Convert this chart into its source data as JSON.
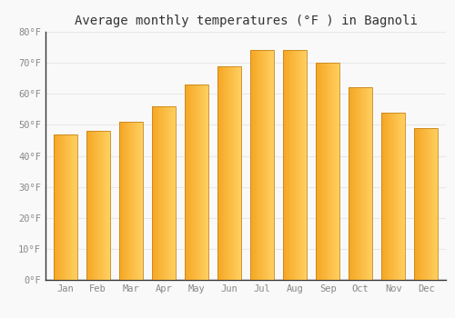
{
  "title": "Average monthly temperatures (°F ) in Bagnoli",
  "months": [
    "Jan",
    "Feb",
    "Mar",
    "Apr",
    "May",
    "Jun",
    "Jul",
    "Aug",
    "Sep",
    "Oct",
    "Nov",
    "Dec"
  ],
  "values": [
    47,
    48,
    51,
    56,
    63,
    69,
    74,
    74,
    70,
    62,
    54,
    49
  ],
  "bar_color_left": "#F5A623",
  "bar_color_right": "#FFD060",
  "bar_edge_color": "#C8841A",
  "ylim": [
    0,
    80
  ],
  "yticks": [
    0,
    10,
    20,
    30,
    40,
    50,
    60,
    70,
    80
  ],
  "ytick_labels": [
    "0°F",
    "10°F",
    "20°F",
    "30°F",
    "40°F",
    "50°F",
    "60°F",
    "70°F",
    "80°F"
  ],
  "background_color": "#f9f9f9",
  "plot_bg_color": "#f9f9f9",
  "grid_color": "#e8e8e8",
  "title_fontsize": 10,
  "tick_fontsize": 7.5,
  "tick_color": "#888888",
  "spine_color": "#333333"
}
